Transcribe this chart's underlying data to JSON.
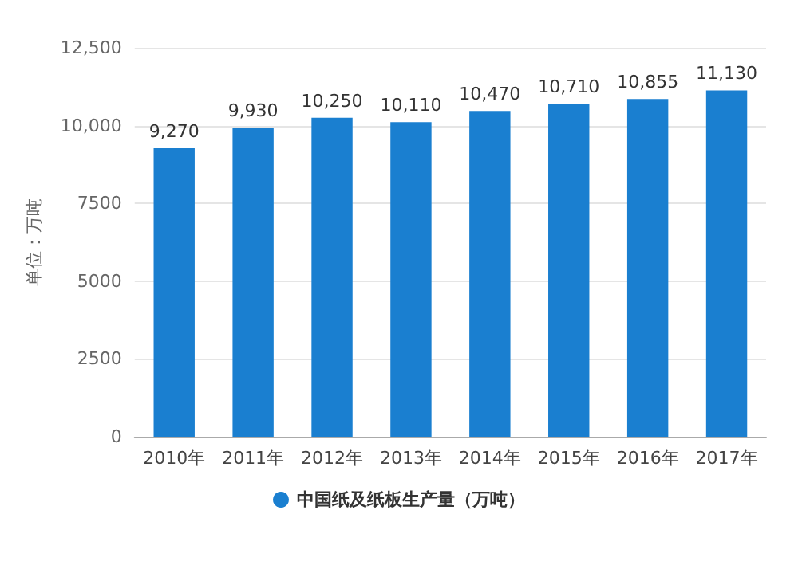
{
  "chart_data": {
    "type": "bar",
    "ylabel": "单位：万吨",
    "categories": [
      "2010年",
      "2011年",
      "2012年",
      "2013年",
      "2014年",
      "2015年",
      "2016年",
      "2017年"
    ],
    "series": [
      {
        "name": "中国纸及纸板生产量（万吨）",
        "color": "#1a7fd0",
        "values": [
          9270,
          9930,
          10250,
          10110,
          10470,
          10710,
          10855,
          11130
        ],
        "value_labels": [
          "9,270",
          "9,930",
          "10,250",
          "10,110",
          "10,470",
          "10,710",
          "10,855",
          "11,130"
        ]
      }
    ],
    "ylim": [
      0,
      12500
    ],
    "yticks": [
      0,
      2500,
      5000,
      7500,
      {
        "value": 10000,
        "label": "10,000"
      },
      {
        "value": 12500,
        "label": "12,500"
      }
    ],
    "grid": "y",
    "legend": "bottom"
  }
}
